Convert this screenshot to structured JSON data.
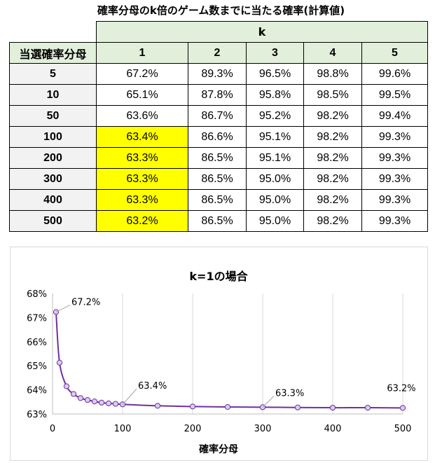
{
  "table": {
    "title": "確率分母のk倍のゲーム数までに当たる確率(計算値)",
    "k_header": "k",
    "row_header": "当選確率分母",
    "columns": [
      "1",
      "2",
      "3",
      "4",
      "5"
    ],
    "rows": [
      {
        "denominator": "5",
        "values": [
          "67.2%",
          "89.3%",
          "96.5%",
          "98.8%",
          "99.6%"
        ]
      },
      {
        "denominator": "10",
        "values": [
          "65.1%",
          "87.8%",
          "95.8%",
          "98.5%",
          "99.5%"
        ]
      },
      {
        "denominator": "50",
        "values": [
          "63.6%",
          "86.7%",
          "95.2%",
          "98.2%",
          "99.4%"
        ]
      },
      {
        "denominator": "100",
        "values": [
          "63.4%",
          "86.6%",
          "95.1%",
          "98.2%",
          "99.3%"
        ]
      },
      {
        "denominator": "200",
        "values": [
          "63.3%",
          "86.5%",
          "95.1%",
          "98.2%",
          "99.3%"
        ]
      },
      {
        "denominator": "300",
        "values": [
          "63.3%",
          "86.5%",
          "95.0%",
          "98.2%",
          "99.3%"
        ]
      },
      {
        "denominator": "400",
        "values": [
          "63.3%",
          "86.5%",
          "95.0%",
          "98.2%",
          "99.3%"
        ]
      },
      {
        "denominator": "500",
        "values": [
          "63.2%",
          "86.5%",
          "95.0%",
          "98.2%",
          "99.3%"
        ]
      }
    ],
    "highlight_color": "#ffff00",
    "header_color": "#e2efda"
  },
  "chart_data": {
    "type": "line",
    "title": "k=1の場合",
    "xlabel": "確率分母",
    "ylabel": "",
    "xlim": [
      0,
      500
    ],
    "ylim": [
      63,
      68
    ],
    "x_ticks": [
      "0",
      "100",
      "200",
      "300",
      "400",
      "500"
    ],
    "y_ticks": [
      "63%",
      "64%",
      "65%",
      "66%",
      "67%",
      "68%"
    ],
    "grid": "vertical",
    "line_color": "#7030a0",
    "marker_fill": "#d9ccf0",
    "series": [
      {
        "x": [
          5,
          10,
          20,
          30,
          40,
          50,
          60,
          70,
          80,
          90,
          100,
          150,
          200,
          250,
          300,
          350,
          400,
          450,
          500
        ],
        "y": [
          67.23,
          65.13,
          64.15,
          63.83,
          63.66,
          63.58,
          63.52,
          63.47,
          63.44,
          63.42,
          63.4,
          63.34,
          63.31,
          63.29,
          63.28,
          63.27,
          63.26,
          63.26,
          63.25
        ]
      }
    ],
    "annotations": [
      {
        "x": 5,
        "y": 67.23,
        "text": "67.2%"
      },
      {
        "x": 100,
        "y": 63.4,
        "text": "63.4%"
      },
      {
        "x": 300,
        "y": 63.28,
        "text": "63.3%"
      },
      {
        "x": 500,
        "y": 63.25,
        "text": "63.2%"
      }
    ]
  }
}
